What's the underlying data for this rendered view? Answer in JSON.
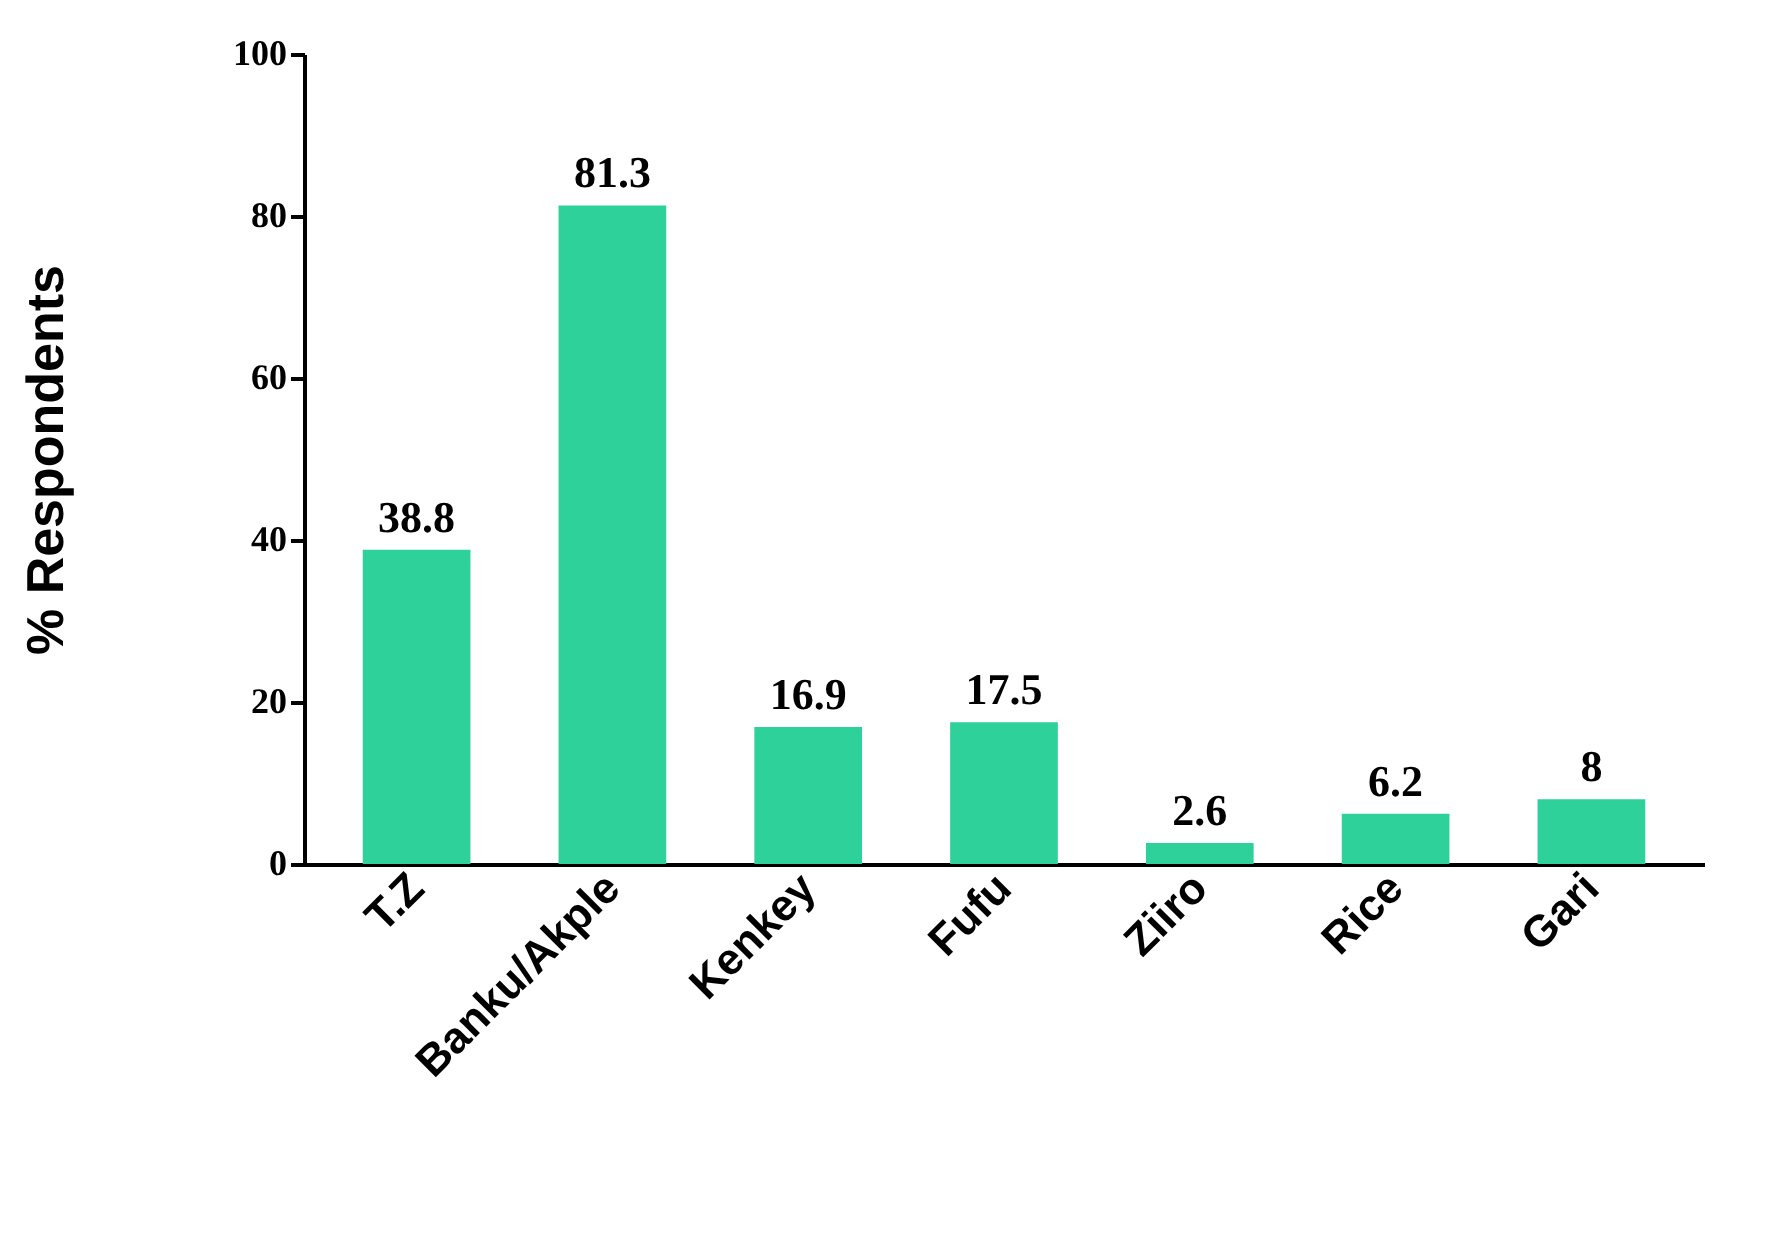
{
  "chart_data": {
    "type": "bar",
    "ylabel": "% Respondents",
    "categories": [
      "T.Z",
      "Banku/Akple",
      "Kenkey",
      "Fufu",
      "Ziiro",
      "Rice",
      "Gari"
    ],
    "values": [
      38.8,
      81.3,
      16.9,
      17.5,
      2.6,
      6.2,
      8
    ],
    "color": "#2fd19b",
    "ylim": [
      0,
      100
    ],
    "yticks": [
      0,
      20,
      40,
      60,
      80,
      100
    ],
    "grid": false,
    "data_labels": true
  }
}
